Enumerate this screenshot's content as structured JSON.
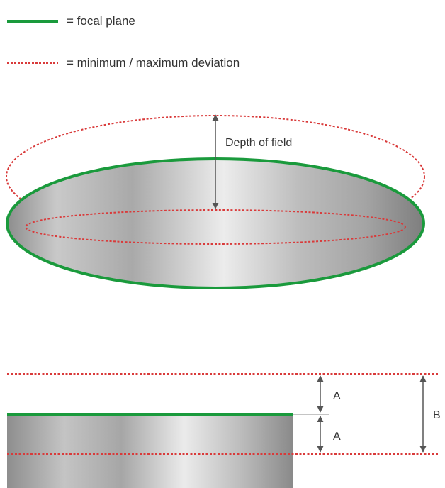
{
  "legend": {
    "focal_plane": "= focal plane",
    "deviation": "= minimum / maximum deviation"
  },
  "annotations": {
    "depth_of_field": "Depth of field",
    "a_top": "A",
    "a_bottom": "A",
    "b": "B"
  },
  "colors": {
    "focal_plane": "#1a9a3c",
    "deviation": "#d93a3a",
    "arrow": "#555555",
    "text": "#333333",
    "surface_light": "#eeeeee",
    "surface_dark": "#8a8a8a"
  }
}
